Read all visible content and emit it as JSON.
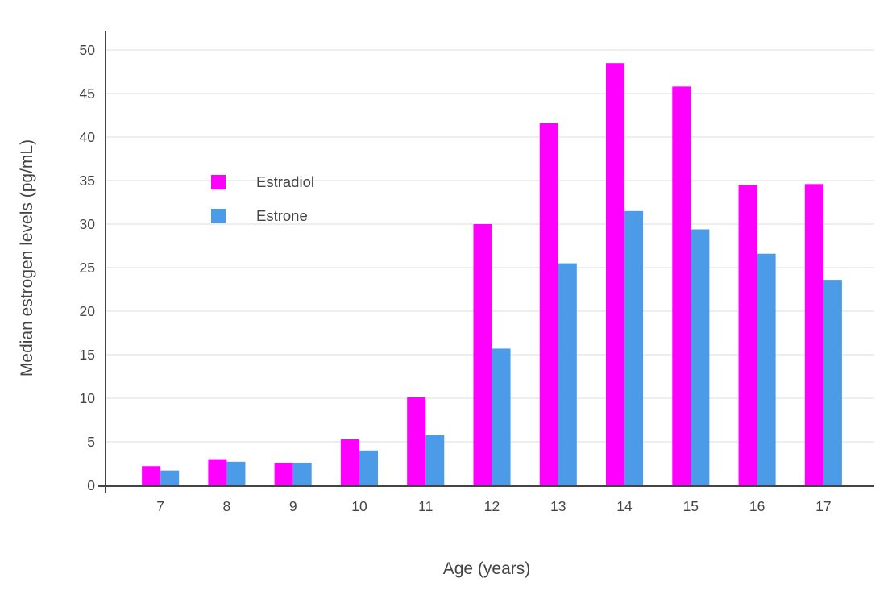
{
  "chart_data": {
    "type": "bar",
    "title": "",
    "xlabel": "Age (years)",
    "ylabel": "Median estrogen levels (pg/mL)",
    "categories": [
      "7",
      "8",
      "9",
      "10",
      "11",
      "12",
      "13",
      "14",
      "15",
      "16",
      "17"
    ],
    "series": [
      {
        "name": "Estradiol",
        "color": "#FF00FF",
        "values": [
          2.2,
          3.0,
          2.6,
          5.3,
          10.1,
          30.0,
          41.6,
          48.5,
          45.8,
          34.5,
          34.6
        ]
      },
      {
        "name": "Estrone",
        "color": "#4C9BE8",
        "values": [
          1.7,
          2.7,
          2.6,
          4.0,
          5.8,
          15.7,
          25.5,
          31.5,
          29.4,
          26.6,
          23.6
        ]
      }
    ],
    "ylim": [
      0,
      50
    ],
    "yticks": [
      0,
      5,
      10,
      15,
      20,
      25,
      30,
      35,
      40,
      45,
      50
    ],
    "grid": true,
    "legend_position": "inside-top-left",
    "axis_color": "#444444",
    "grid_color": "#E8E8E8",
    "text_color": "#444444",
    "background": "#FFFFFF"
  }
}
